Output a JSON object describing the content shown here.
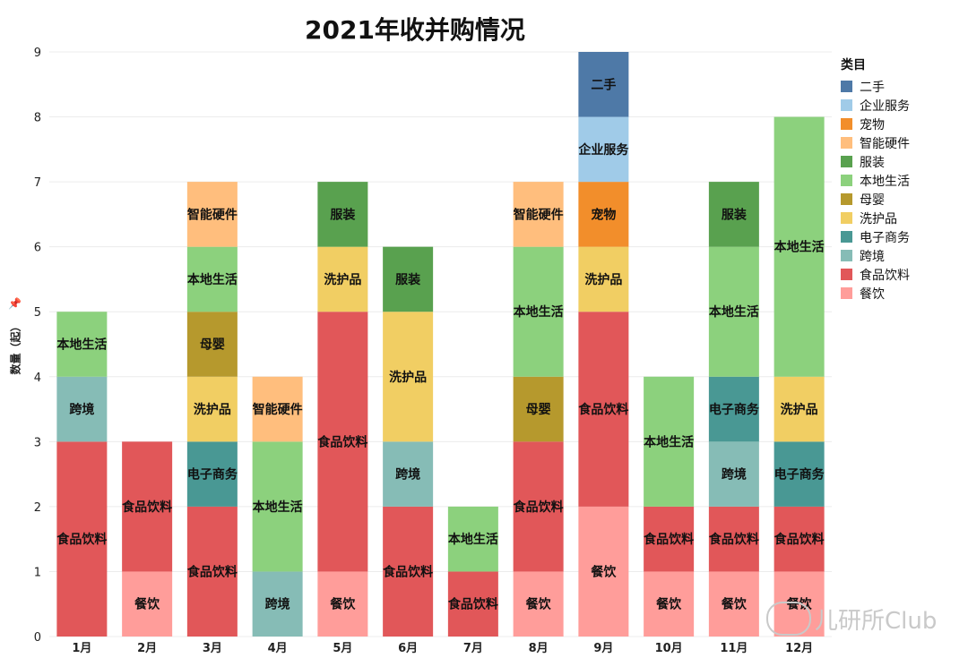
{
  "title": "2021年收并购情况",
  "y_axis_label": "数量（起）",
  "watermark_text": "儿研所Club",
  "legend": {
    "title": "类目",
    "items": [
      {
        "name": "二手",
        "color": "#4e79a7"
      },
      {
        "name": "企业服务",
        "color": "#a0cbe8"
      },
      {
        "name": "宠物",
        "color": "#f28e2b"
      },
      {
        "name": "智能硬件",
        "color": "#ffbe7d"
      },
      {
        "name": "服装",
        "color": "#59a14f"
      },
      {
        "name": "本地生活",
        "color": "#8cd17d"
      },
      {
        "name": "母婴",
        "color": "#b6992d"
      },
      {
        "name": "洗护品",
        "color": "#f1ce63"
      },
      {
        "name": "电子商务",
        "color": "#499894"
      },
      {
        "name": "跨境",
        "color": "#86bcb6"
      },
      {
        "name": "食品饮料",
        "color": "#e15759"
      },
      {
        "name": "餐饮",
        "color": "#ff9d9a"
      }
    ]
  },
  "chart_data": {
    "type": "bar",
    "stacked": true,
    "title": "2021年收并购情况",
    "ylabel": "数量（起）",
    "xlabel": "",
    "ylim": [
      0,
      9
    ],
    "yticks": [
      0,
      1,
      2,
      3,
      4,
      5,
      6,
      7,
      8,
      9
    ],
    "grid": true,
    "legend_position": "right",
    "categories": [
      "1月",
      "2月",
      "3月",
      "4月",
      "5月",
      "6月",
      "7月",
      "8月",
      "9月",
      "10月",
      "11月",
      "12月"
    ],
    "stacks": [
      [
        {
          "category": "食品饮料",
          "value": 3
        },
        {
          "category": "跨境",
          "value": 1
        },
        {
          "category": "本地生活",
          "value": 1
        }
      ],
      [
        {
          "category": "餐饮",
          "value": 1
        },
        {
          "category": "食品饮料",
          "value": 2
        }
      ],
      [
        {
          "category": "食品饮料",
          "value": 2
        },
        {
          "category": "电子商务",
          "value": 1
        },
        {
          "category": "洗护品",
          "value": 1
        },
        {
          "category": "母婴",
          "value": 1
        },
        {
          "category": "本地生活",
          "value": 1
        },
        {
          "category": "智能硬件",
          "value": 1
        }
      ],
      [
        {
          "category": "跨境",
          "value": 1
        },
        {
          "category": "本地生活",
          "value": 2
        },
        {
          "category": "智能硬件",
          "value": 1
        }
      ],
      [
        {
          "category": "餐饮",
          "value": 1
        },
        {
          "category": "食品饮料",
          "value": 4
        },
        {
          "category": "洗护品",
          "value": 1
        },
        {
          "category": "服装",
          "value": 1
        }
      ],
      [
        {
          "category": "食品饮料",
          "value": 2
        },
        {
          "category": "跨境",
          "value": 1
        },
        {
          "category": "洗护品",
          "value": 2
        },
        {
          "category": "服装",
          "value": 1
        }
      ],
      [
        {
          "category": "食品饮料",
          "value": 1
        },
        {
          "category": "本地生活",
          "value": 1
        }
      ],
      [
        {
          "category": "餐饮",
          "value": 1
        },
        {
          "category": "食品饮料",
          "value": 2
        },
        {
          "category": "母婴",
          "value": 1
        },
        {
          "category": "本地生活",
          "value": 2
        },
        {
          "category": "智能硬件",
          "value": 1
        }
      ],
      [
        {
          "category": "餐饮",
          "value": 2
        },
        {
          "category": "食品饮料",
          "value": 3
        },
        {
          "category": "洗护品",
          "value": 1
        },
        {
          "category": "宠物",
          "value": 1
        },
        {
          "category": "企业服务",
          "value": 1
        },
        {
          "category": "二手",
          "value": 1
        }
      ],
      [
        {
          "category": "餐饮",
          "value": 1
        },
        {
          "category": "食品饮料",
          "value": 1
        },
        {
          "category": "本地生活",
          "value": 2
        }
      ],
      [
        {
          "category": "餐饮",
          "value": 1
        },
        {
          "category": "食品饮料",
          "value": 1
        },
        {
          "category": "跨境",
          "value": 1
        },
        {
          "category": "电子商务",
          "value": 1
        },
        {
          "category": "本地生活",
          "value": 2
        },
        {
          "category": "服装",
          "value": 1
        }
      ],
      [
        {
          "category": "餐饮",
          "value": 1
        },
        {
          "category": "食品饮料",
          "value": 1
        },
        {
          "category": "电子商务",
          "value": 1
        },
        {
          "category": "洗护品",
          "value": 1
        },
        {
          "category": "本地生活",
          "value": 4
        }
      ]
    ]
  }
}
